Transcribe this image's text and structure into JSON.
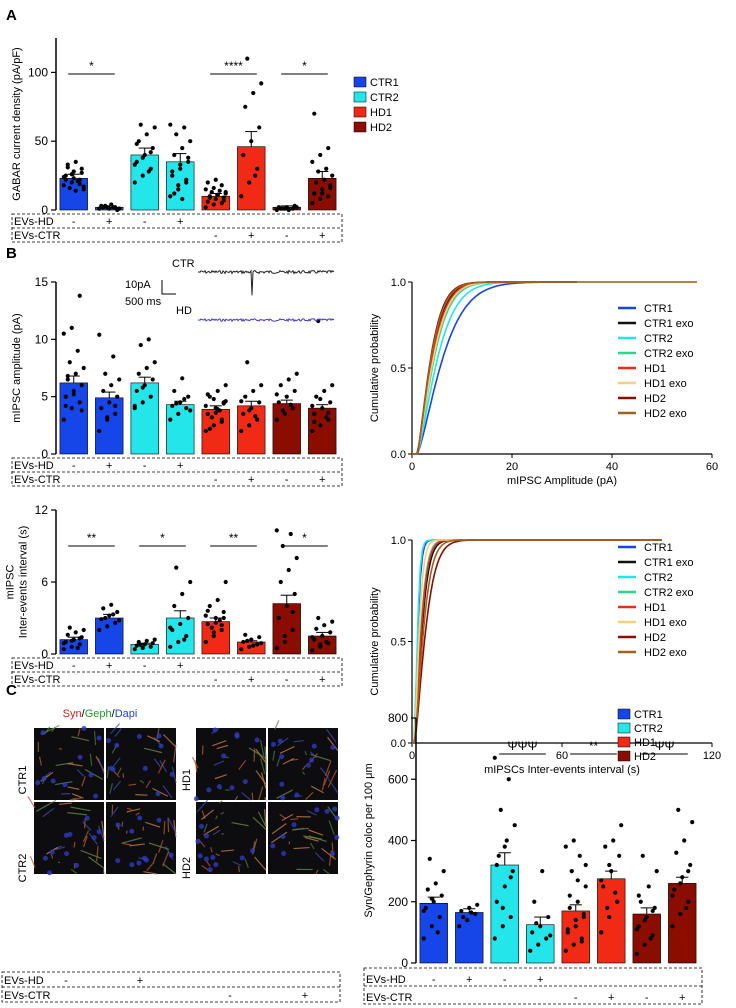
{
  "panel_labels": {
    "a": "A",
    "b": "B",
    "c": "C"
  },
  "conditions": {
    "hd_row_label": "EVs-HD",
    "ctr_row_label": "EVs-CTR",
    "minus": "-",
    "plus": "+"
  },
  "colors": {
    "CTR1": "#1646e8",
    "CTR2": "#24e6ea",
    "HD1": "#f02a14",
    "HD2": "#8b0d00",
    "CTR1_exo": "#111111",
    "CTR2_exo": "#2ad68c",
    "HD1_exo": "#f6d07a",
    "HD2_exo": "#a0621e",
    "trace_ctr": "#222222",
    "trace_hd": "#3b3bd6"
  },
  "traces": {
    "ctr_label": "CTR",
    "hd_label": "HD",
    "scale_current": "10pA",
    "scale_time": "500 ms"
  },
  "microscopy": {
    "stain_syn": "Syn",
    "stain_geph": "Geph",
    "stain_dapi": "Dapi",
    "slash": "/",
    "row_labels": [
      "CTR1",
      "CTR2",
      "HD1",
      "HD2"
    ]
  },
  "chart_data": [
    {
      "id": "gabar",
      "type": "bar",
      "ylabel": "GABAR current density (pA/pF)",
      "ylim": [
        0,
        125
      ],
      "yticks": [
        0,
        50,
        100
      ],
      "groups": [
        "CTR1",
        "CTR1",
        "CTR2",
        "CTR2",
        "HD1",
        "HD1",
        "HD2",
        "HD2"
      ],
      "evs_hd": [
        "-",
        "+",
        "-",
        "+",
        "",
        "",
        "",
        ""
      ],
      "evs_ctr": [
        "",
        "",
        "",
        "",
        "-",
        "+",
        "-",
        "+"
      ],
      "values": [
        23,
        2,
        40,
        35,
        10,
        46,
        2,
        23
      ],
      "errors": [
        3,
        1,
        5,
        6,
        2,
        11,
        1,
        5
      ],
      "points": [
        [
          18,
          20,
          22,
          25,
          28,
          30,
          33,
          35,
          15,
          16,
          21,
          24,
          26,
          19,
          22,
          23,
          27,
          31,
          14,
          17
        ],
        [
          1,
          2,
          2,
          3,
          1,
          0,
          2,
          4,
          1,
          3,
          2
        ],
        [
          20,
          25,
          30,
          35,
          40,
          45,
          50,
          55,
          60,
          62,
          28,
          33,
          38,
          42,
          48
        ],
        [
          10,
          15,
          20,
          25,
          30,
          35,
          40,
          45,
          50,
          55,
          60,
          62,
          18,
          22,
          28,
          33,
          38,
          12,
          8
        ],
        [
          2,
          4,
          5,
          6,
          8,
          9,
          10,
          11,
          12,
          13,
          14,
          15,
          16,
          18,
          20,
          22,
          7,
          9,
          11,
          13
        ],
        [
          10,
          20,
          30,
          40,
          50,
          60,
          75,
          85,
          92,
          110,
          25
        ],
        [
          0,
          1,
          1,
          2,
          2,
          3,
          1,
          0,
          2,
          1
        ],
        [
          5,
          8,
          10,
          12,
          15,
          18,
          20,
          22,
          25,
          28,
          30,
          35,
          40,
          45,
          70,
          12,
          16
        ]
      ],
      "significance": [
        {
          "from": 0,
          "to": 1,
          "label": "*"
        },
        {
          "from": 4,
          "to": 5,
          "label": "****"
        },
        {
          "from": 6,
          "to": 7,
          "label": "*"
        }
      ],
      "legend": [
        "CTR1",
        "CTR2",
        "HD1",
        "HD2"
      ]
    },
    {
      "id": "amplitude",
      "type": "bar",
      "ylabel": "mIPSC amplitude (pA)",
      "ylim": [
        0,
        15
      ],
      "yticks": [
        0,
        5,
        10,
        15
      ],
      "groups": [
        "CTR1",
        "CTR1",
        "CTR2",
        "CTR2",
        "HD1",
        "HD1",
        "HD2",
        "HD2"
      ],
      "evs_hd": [
        "-",
        "+",
        "-",
        "+",
        "",
        "",
        "",
        ""
      ],
      "evs_ctr": [
        "",
        "",
        "",
        "",
        "-",
        "+",
        "-",
        "+"
      ],
      "values": [
        6.2,
        4.9,
        6.2,
        4.3,
        3.9,
        4.2,
        4.4,
        4.0
      ],
      "errors": [
        0.6,
        0.5,
        0.5,
        0.3,
        0.3,
        0.4,
        0.3,
        0.3
      ],
      "points": [
        [
          3,
          4,
          4.5,
          5,
          5.5,
          6,
          6.5,
          7,
          7.5,
          8,
          9,
          10.5,
          11,
          13.8,
          4.2,
          5.2,
          3.8,
          6.8
        ],
        [
          2,
          3,
          3.5,
          4,
          4.5,
          5,
          5.5,
          6,
          6.5,
          7,
          8.5,
          10.4,
          3.2,
          4.2
        ],
        [
          4,
          4.5,
          5,
          5.5,
          6,
          6.5,
          7,
          7.5,
          8,
          9.5,
          10,
          4.2,
          5.8
        ],
        [
          3,
          3.5,
          4,
          4.2,
          4.5,
          5,
          5.5,
          6.6,
          3.8,
          4.4,
          4.8
        ],
        [
          2,
          2.5,
          3,
          3.5,
          4,
          4.5,
          5,
          5.5,
          6,
          3.2,
          3.8,
          4.2,
          4.8,
          2.8,
          5.2,
          3.6,
          4.4,
          2.2,
          3.9,
          4.6
        ],
        [
          2,
          2.5,
          3,
          3.5,
          4,
          4.5,
          5,
          5.5,
          6,
          8,
          3.3,
          4.6,
          3.8
        ],
        [
          3,
          3.5,
          4,
          4.5,
          5,
          5.5,
          6,
          6.5,
          7,
          3.8,
          4.3,
          5.2
        ],
        [
          2,
          2.5,
          3,
          3.5,
          4,
          4.5,
          5,
          5.5,
          6,
          11.6,
          3.2,
          4.2,
          4.8,
          3.6,
          2.8
        ]
      ],
      "significance": []
    },
    {
      "id": "cdf_amplitude",
      "type": "line",
      "xlabel": "mIPSC Amplitude (pA)",
      "ylabel": "Cumulative probability",
      "xlim": [
        0,
        60
      ],
      "ylim": [
        0,
        1
      ],
      "xticks": [
        0,
        20,
        40,
        60
      ],
      "yticks": [
        0.0,
        0.5,
        1.0
      ],
      "series": [
        {
          "name": "CTR1",
          "color": "#1646e8",
          "scale": 6.0,
          "xmax": 33
        },
        {
          "name": "CTR1 exo",
          "color": "#111111",
          "scale": 3.5,
          "xmax": 33
        },
        {
          "name": "CTR2",
          "color": "#24e6ea",
          "scale": 4.8,
          "xmax": 33
        },
        {
          "name": "CTR2 exo",
          "color": "#2ad68c",
          "scale": 4.0,
          "xmax": 33
        },
        {
          "name": "HD1",
          "color": "#f02a14",
          "scale": 3.6,
          "xmax": 33
        },
        {
          "name": "HD1 exo",
          "color": "#f6d07a",
          "scale": 3.8,
          "xmax": 57
        },
        {
          "name": "HD2",
          "color": "#8b0d00",
          "scale": 3.2,
          "xmax": 33
        },
        {
          "name": "HD2 exo",
          "color": "#a0621e",
          "scale": 3.3,
          "xmax": 57
        }
      ]
    },
    {
      "id": "interval",
      "type": "bar",
      "ylabel": "mIPSC\nInter-events interval (s)",
      "ylim": [
        0,
        12
      ],
      "yticks": [
        0,
        6,
        12
      ],
      "groups": [
        "CTR1",
        "CTR1",
        "CTR2",
        "CTR2",
        "HD1",
        "HD1",
        "HD2",
        "HD2"
      ],
      "evs_hd": [
        "-",
        "+",
        "-",
        "+",
        "",
        "",
        "",
        ""
      ],
      "evs_ctr": [
        "",
        "",
        "",
        "",
        "-",
        "+",
        "-",
        "+"
      ],
      "values": [
        1.2,
        3.0,
        0.8,
        3.0,
        2.7,
        1.0,
        4.2,
        1.5
      ],
      "errors": [
        0.2,
        0.3,
        0.1,
        0.6,
        0.3,
        0.1,
        0.7,
        0.3
      ],
      "points": [
        [
          0.4,
          0.6,
          0.8,
          1.0,
          1.2,
          1.4,
          1.6,
          1.8,
          2.0,
          2.2,
          0.5,
          0.9,
          1.1,
          1.3
        ],
        [
          2.0,
          2.3,
          2.6,
          2.9,
          3.2,
          3.5,
          3.8,
          4.1,
          2.8,
          3.0,
          3.3
        ],
        [
          0.4,
          0.5,
          0.6,
          0.7,
          0.8,
          0.9,
          1.0,
          1.1,
          1.2,
          0.75
        ],
        [
          0.6,
          1.0,
          1.5,
          2.0,
          2.5,
          3.0,
          4.0,
          5.0,
          6.0,
          7.2,
          1.2,
          2.2
        ],
        [
          1.0,
          1.5,
          2.0,
          2.5,
          3.0,
          3.5,
          4.0,
          4.5,
          6.0,
          2.2,
          2.8,
          3.2,
          1.8,
          2.4,
          3.6,
          2.6,
          3.0
        ],
        [
          0.4,
          0.6,
          0.8,
          1.0,
          1.2,
          1.4,
          1.6,
          0.7,
          0.9,
          1.1
        ],
        [
          0.5,
          1.0,
          2.0,
          3.0,
          4.0,
          5.0,
          6.0,
          7.0,
          8.0,
          9.0,
          10.0,
          10.3,
          1.5,
          3.5
        ],
        [
          0.3,
          0.6,
          0.9,
          1.2,
          1.5,
          1.8,
          2.1,
          2.4,
          2.7,
          3.0,
          1.0,
          1.4,
          0.8
        ]
      ],
      "significance": [
        {
          "from": 0,
          "to": 1,
          "label": "**"
        },
        {
          "from": 2,
          "to": 3,
          "label": "*"
        },
        {
          "from": 4,
          "to": 5,
          "label": "**"
        },
        {
          "from": 6,
          "to": 7,
          "label": "*"
        }
      ],
      "legend": [
        "CTR1",
        "CTR2",
        "HD1",
        "HD2"
      ]
    },
    {
      "id": "cdf_interval",
      "type": "line",
      "xlabel": "mIPSCs Inter-events interval (s)",
      "ylabel": "Cumulative probability",
      "xlim": [
        0,
        120
      ],
      "ylim": [
        0,
        1
      ],
      "xticks": [
        0,
        60,
        120
      ],
      "yticks": [
        0.0,
        0.5,
        1.0
      ],
      "series": [
        {
          "name": "CTR1",
          "color": "#1646e8",
          "scale": 1.6,
          "xmax": 100
        },
        {
          "name": "CTR1 exo",
          "color": "#111111",
          "scale": 3.5,
          "xmax": 100
        },
        {
          "name": "CTR2",
          "color": "#24e6ea",
          "scale": 1.4,
          "xmax": 100
        },
        {
          "name": "CTR2 exo",
          "color": "#2ad68c",
          "scale": 3.0,
          "xmax": 100
        },
        {
          "name": "HD1",
          "color": "#f02a14",
          "scale": 3.2,
          "xmax": 100
        },
        {
          "name": "HD1 exo",
          "color": "#f6d07a",
          "scale": 2.2,
          "xmax": 100
        },
        {
          "name": "HD2",
          "color": "#8b0d00",
          "scale": 5.2,
          "xmax": 100
        },
        {
          "name": "HD2 exo",
          "color": "#a0621e",
          "scale": 4.2,
          "xmax": 100
        }
      ]
    },
    {
      "id": "coloc",
      "type": "bar",
      "ylabel": "Syn/Gephyrin coloc per 100 μm",
      "ylim": [
        0,
        800
      ],
      "yticks": [
        0,
        200,
        400,
        600,
        800
      ],
      "groups": [
        "CTR1",
        "CTR1",
        "CTR2",
        "CTR2",
        "HD1",
        "HD1",
        "HD2",
        "HD2"
      ],
      "evs_hd": [
        "-",
        "+",
        "-",
        "+",
        "",
        "",
        "",
        ""
      ],
      "evs_ctr": [
        "",
        "",
        "",
        "",
        "-",
        "+",
        "-",
        "+"
      ],
      "values": [
        195,
        165,
        320,
        125,
        170,
        275,
        160,
        260
      ],
      "errors": [
        20,
        12,
        40,
        25,
        20,
        25,
        20,
        20
      ],
      "points": [
        [
          80,
          120,
          150,
          180,
          200,
          220,
          240,
          260,
          300,
          340,
          100,
          170,
          210
        ],
        [
          120,
          140,
          160,
          170,
          180,
          190,
          150,
          165
        ],
        [
          80,
          120,
          150,
          200,
          250,
          300,
          350,
          400,
          450,
          500,
          600,
          670,
          180,
          280,
          320,
          380
        ],
        [
          40,
          60,
          80,
          100,
          120,
          150,
          200,
          300,
          90,
          130
        ],
        [
          40,
          60,
          80,
          100,
          120,
          150,
          180,
          200,
          250,
          300,
          350,
          380,
          400,
          70,
          110,
          140,
          160,
          220,
          270,
          320
        ],
        [
          100,
          150,
          200,
          250,
          300,
          350,
          380,
          400,
          450,
          180,
          230,
          270,
          320
        ],
        [
          30,
          60,
          90,
          120,
          150,
          180,
          200,
          250,
          300,
          350,
          80,
          110,
          140,
          170,
          220
        ],
        [
          120,
          160,
          200,
          240,
          280,
          320,
          360,
          400,
          460,
          500,
          180,
          220,
          260,
          300
        ]
      ],
      "significance": [
        {
          "from": 2,
          "to": 3,
          "label": "ΨΨΨ"
        },
        {
          "from": 4,
          "to": 5,
          "label": "**"
        },
        {
          "from": 6,
          "to": 7,
          "label": "ΨΨ"
        }
      ],
      "legend": [
        "CTR1",
        "CTR2",
        "HD1",
        "HD2"
      ]
    }
  ]
}
